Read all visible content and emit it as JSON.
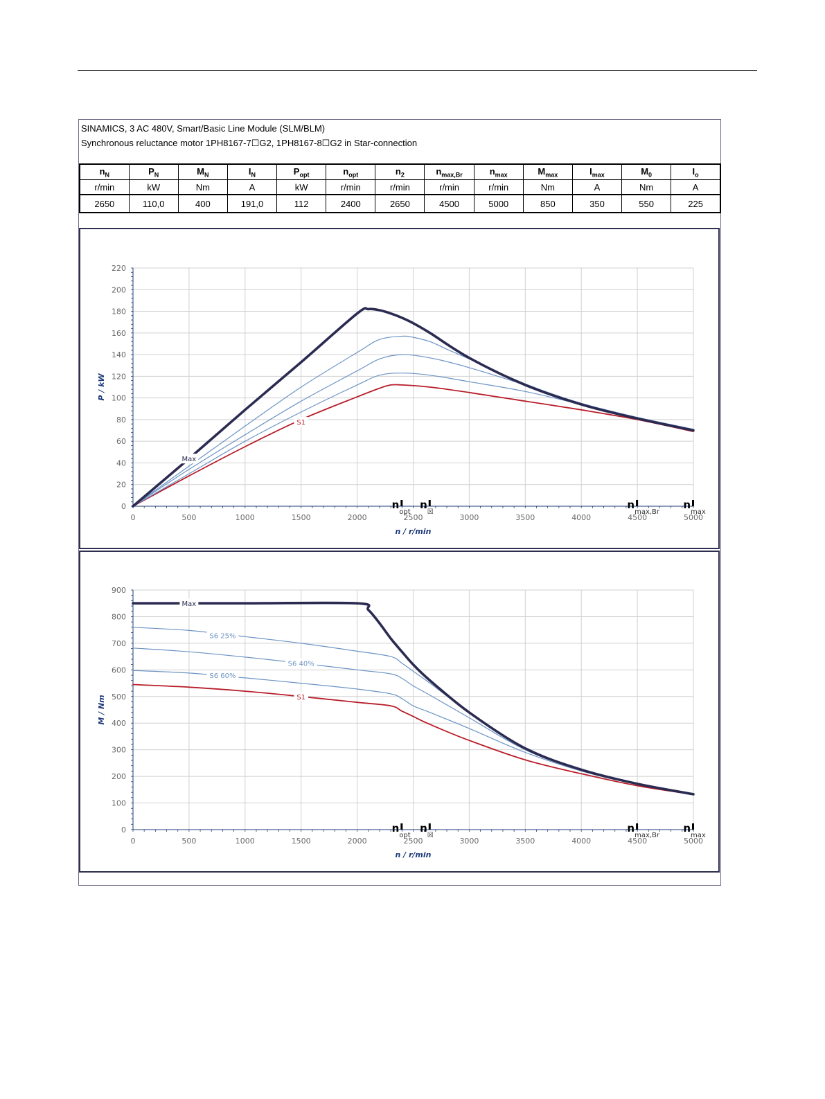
{
  "header": {
    "line1": "SINAMICS, 3 AC 480V, Smart/Basic Line Module (SLM/BLM)",
    "line2": "Synchronous reluctance motor  1PH8167-7☐G2,  1PH8167-8☐G2   in Star-connection"
  },
  "params": [
    {
      "sym": "n",
      "sub": "N",
      "unit": "r/min",
      "value": "2650"
    },
    {
      "sym": "P",
      "sub": "N",
      "unit": "kW",
      "value": "110,0"
    },
    {
      "sym": "M",
      "sub": "N",
      "unit": "Nm",
      "value": "400"
    },
    {
      "sym": "I",
      "sub": "N",
      "unit": "A",
      "value": "191,0"
    },
    {
      "sym": "P",
      "sub": "opt",
      "unit": "kW",
      "value": "112"
    },
    {
      "sym": "n",
      "sub": "opt",
      "unit": "r/min",
      "value": "2400"
    },
    {
      "sym": "n",
      "sub": "2",
      "unit": "r/min",
      "value": "2650"
    },
    {
      "sym": "n",
      "sub": "max,Br",
      "unit": "r/min",
      "value": "4500"
    },
    {
      "sym": "n",
      "sub": "max",
      "unit": "r/min",
      "value": "5000"
    },
    {
      "sym": "M",
      "sub": "max",
      "unit": "Nm",
      "value": "850"
    },
    {
      "sym": "I",
      "sub": "max",
      "unit": "A",
      "value": "350"
    },
    {
      "sym": "M",
      "sub": "0",
      "unit": "Nm",
      "value": "550"
    },
    {
      "sym": "I",
      "sub": "o",
      "unit": "A",
      "value": "225"
    }
  ],
  "colors": {
    "max": "#2b2b52",
    "s6": "#6b93c4",
    "s1": "#b81c28",
    "grid": "#d0d0d0"
  },
  "speed_markers": [
    {
      "label": "n",
      "sub": "opt",
      "x": 2400
    },
    {
      "label": "n",
      "sub": "☒",
      "x": 2650
    },
    {
      "label": "n",
      "sub": "max,Br",
      "x": 4500
    },
    {
      "label": "n",
      "sub": "max",
      "x": 5000
    }
  ],
  "chart_data": [
    {
      "type": "line",
      "xlabel": "n / r/min",
      "ylabel": "P / kW",
      "xlim": [
        0,
        5000
      ],
      "ylim": [
        0,
        220
      ],
      "xticks": [
        0,
        500,
        1000,
        1500,
        2000,
        2500,
        3000,
        3500,
        4000,
        4500,
        5000
      ],
      "yticks": [
        0,
        20,
        40,
        60,
        80,
        100,
        120,
        140,
        160,
        180,
        200,
        220
      ],
      "grid": true,
      "series": [
        {
          "name": "Max",
          "kind": "max",
          "x": [
            0,
            500,
            1000,
            1500,
            2000,
            2100,
            2200,
            2300,
            2400,
            2500,
            2650,
            3000,
            3500,
            4000,
            4500,
            5000
          ],
          "y": [
            0,
            44,
            89,
            133,
            178,
            182,
            181,
            178,
            174,
            169,
            160,
            137,
            112,
            94,
            81,
            70
          ]
        },
        {
          "name": "",
          "kind": "s6",
          "x": [
            0,
            500,
            1000,
            1500,
            2000,
            2200,
            2400,
            2500,
            2650,
            2800,
            3000,
            3500,
            4000,
            4500,
            5000
          ],
          "y": [
            0,
            37,
            74,
            110,
            142,
            154,
            157,
            156,
            152,
            145,
            136,
            113,
            95,
            82,
            71
          ]
        },
        {
          "name": "",
          "kind": "s6",
          "x": [
            0,
            500,
            1000,
            1500,
            2000,
            2200,
            2400,
            2650,
            3000,
            3500,
            4000,
            4500,
            5000
          ],
          "y": [
            0,
            34,
            66,
            97,
            125,
            136,
            140,
            137,
            128,
            112,
            95,
            82,
            71
          ]
        },
        {
          "name": "",
          "kind": "s6",
          "x": [
            0,
            500,
            1000,
            1500,
            2000,
            2200,
            2400,
            2650,
            3000,
            3500,
            4000,
            4500,
            5000
          ],
          "y": [
            0,
            30,
            60,
            87,
            112,
            121,
            123,
            121,
            115,
            106,
            94,
            82,
            71
          ]
        },
        {
          "name": "S1",
          "kind": "s1",
          "x": [
            0,
            500,
            1000,
            1500,
            2000,
            2200,
            2300,
            2400,
            2650,
            3000,
            3500,
            4000,
            4500,
            5000
          ],
          "y": [
            0,
            28,
            55,
            80,
            101,
            109,
            112,
            112,
            110,
            105,
            97,
            89,
            80,
            69
          ]
        }
      ],
      "labels": [
        {
          "text": "Max",
          "x": 500,
          "y": 44,
          "kind": "max"
        },
        {
          "text": "S1",
          "x": 1500,
          "y": 78,
          "kind": "s1"
        }
      ]
    },
    {
      "type": "line",
      "xlabel": "n / r/min",
      "ylabel": "M / Nm",
      "xlim": [
        0,
        5000
      ],
      "ylim": [
        0,
        900
      ],
      "xticks": [
        0,
        500,
        1000,
        1500,
        2000,
        2500,
        3000,
        3500,
        4000,
        4500,
        5000
      ],
      "yticks": [
        0,
        100,
        200,
        300,
        400,
        500,
        600,
        700,
        800,
        900
      ],
      "grid": true,
      "series": [
        {
          "name": "Max",
          "kind": "max",
          "x": [
            0,
            1000,
            2000,
            2100,
            2200,
            2300,
            2400,
            2500,
            2650,
            3000,
            3500,
            4000,
            4500,
            5000
          ],
          "y": [
            850,
            850,
            850,
            825,
            775,
            718,
            668,
            620,
            560,
            440,
            305,
            225,
            172,
            133
          ]
        },
        {
          "name": "S6 25%",
          "kind": "s6",
          "x": [
            0,
            500,
            1000,
            1500,
            2000,
            2300,
            2400,
            2500,
            2650,
            3000,
            3500,
            4000,
            4500,
            5000
          ],
          "y": [
            760,
            748,
            725,
            700,
            670,
            650,
            625,
            595,
            550,
            440,
            305,
            225,
            172,
            133
          ]
        },
        {
          "name": "S6 40%",
          "kind": "s6",
          "x": [
            0,
            500,
            1000,
            1500,
            2000,
            2300,
            2400,
            2500,
            2650,
            3000,
            3500,
            4000,
            4500,
            5000
          ],
          "y": [
            682,
            668,
            648,
            625,
            600,
            585,
            568,
            540,
            505,
            420,
            300,
            222,
            170,
            133
          ]
        },
        {
          "name": "S6 60%",
          "kind": "s6",
          "x": [
            0,
            500,
            1000,
            1500,
            2000,
            2300,
            2400,
            2500,
            2650,
            3000,
            3500,
            4000,
            4500,
            5000
          ],
          "y": [
            598,
            588,
            570,
            550,
            528,
            510,
            492,
            465,
            440,
            380,
            290,
            220,
            170,
            133
          ]
        },
        {
          "name": "S1",
          "kind": "s1",
          "x": [
            0,
            500,
            1000,
            1500,
            2000,
            2300,
            2400,
            2500,
            2650,
            3000,
            3500,
            4000,
            4500,
            5000
          ],
          "y": [
            545,
            535,
            520,
            500,
            478,
            465,
            445,
            425,
            395,
            335,
            262,
            210,
            165,
            132
          ]
        }
      ],
      "labels": [
        {
          "text": "Max",
          "x": 500,
          "y": 850,
          "kind": "max"
        },
        {
          "text": "S6 25%",
          "x": 800,
          "y": 730,
          "kind": "s6"
        },
        {
          "text": "S6 40%",
          "x": 1500,
          "y": 625,
          "kind": "s6"
        },
        {
          "text": "S6 60%",
          "x": 800,
          "y": 580,
          "kind": "s6"
        },
        {
          "text": "S1",
          "x": 1500,
          "y": 500,
          "kind": "s1"
        }
      ]
    }
  ]
}
